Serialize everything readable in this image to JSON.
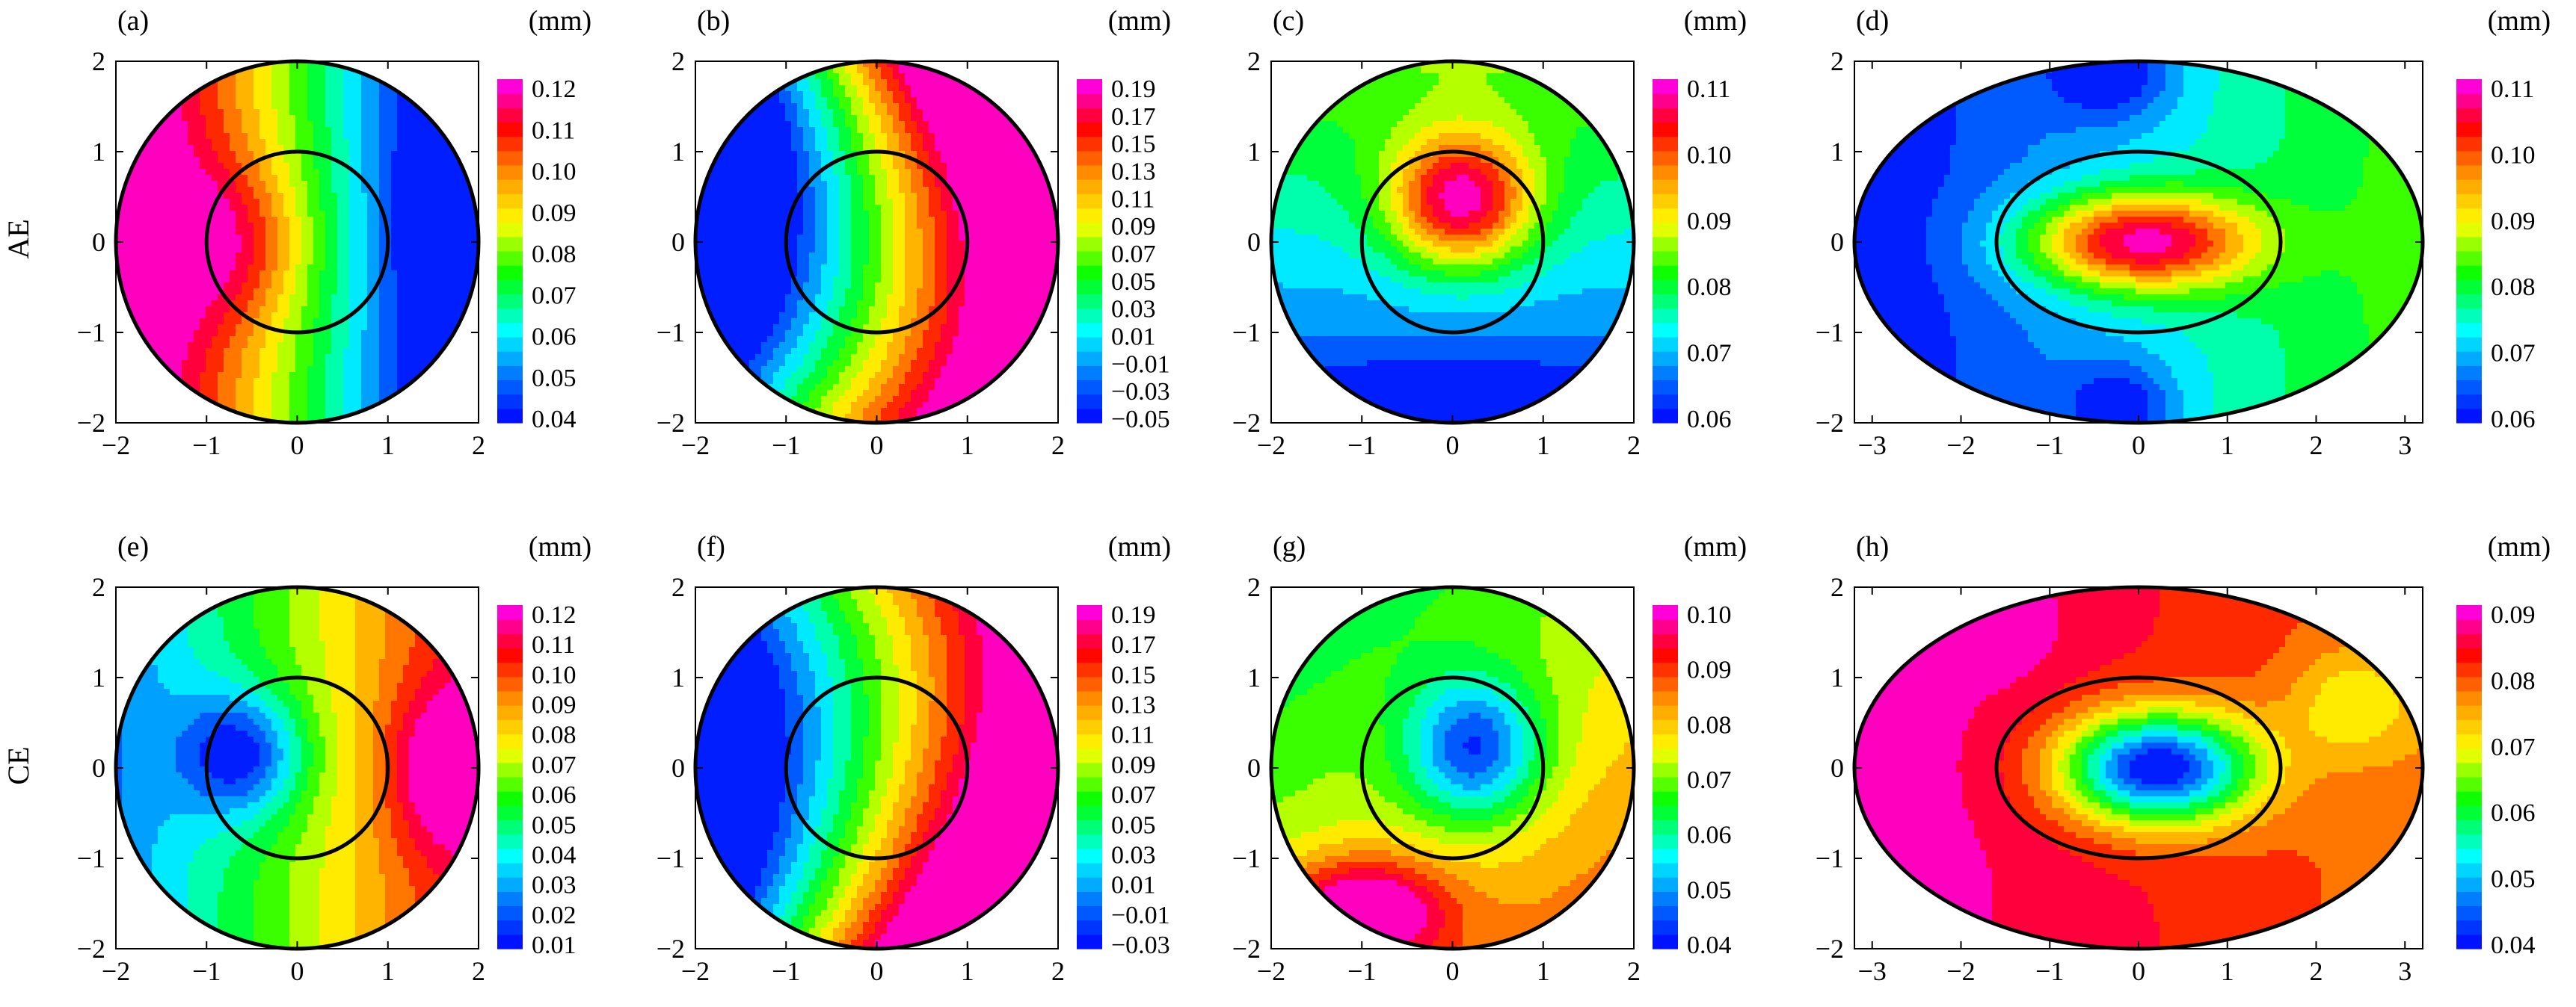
{
  "figure": {
    "row_labels": [
      "AE",
      "CE"
    ],
    "unit_label": "(mm)"
  },
  "chart_data": [
    {
      "type": "heatmap",
      "panel": "(a)",
      "row": "AE",
      "shape": "circle",
      "xlim": [
        -2,
        2
      ],
      "ylim": [
        -2,
        2
      ],
      "xticks": [
        -2,
        -1,
        0,
        1,
        2
      ],
      "yticks": [
        -2,
        -1,
        0,
        1,
        2
      ],
      "inner_boundary": {
        "shape": "circle",
        "radius": 1
      },
      "colorbar": {
        "unit": "(mm)",
        "min": 0.04,
        "max": 0.125,
        "ticks": [
          "0.04",
          "0.05",
          "0.06",
          "0.07",
          "0.08",
          "0.09",
          "0.10",
          "0.11",
          "0.12"
        ]
      },
      "field": {
        "bias": 0.08,
        "gx": -0.03,
        "gy": 0.0,
        "bx": -0.75,
        "by": 0.0,
        "bsx": 0.9,
        "bsy": 0.9,
        "bamp": 0.02,
        "cx": 1.7,
        "cy": 0.3,
        "csx": 0.5,
        "csy": 0.7,
        "camp": -0.025
      }
    },
    {
      "type": "heatmap",
      "panel": "(b)",
      "row": "AE",
      "shape": "circle",
      "xlim": [
        -2,
        2
      ],
      "ylim": [
        -2,
        2
      ],
      "xticks": [
        -2,
        -1,
        0,
        1,
        2
      ],
      "yticks": [
        -2,
        -1,
        0,
        1,
        2
      ],
      "inner_boundary": {
        "shape": "circle",
        "radius": 1
      },
      "colorbar": {
        "unit": "(mm)",
        "min": -0.05,
        "max": 0.2,
        "ticks": [
          "0.19",
          "0.17",
          "0.15",
          "0.13",
          "0.11",
          "0.09",
          "0.07",
          "0.05",
          "0.03",
          "0.01",
          "−0.01",
          "−0.03",
          "−0.05"
        ]
      },
      "field": {
        "bias": 0.07,
        "gx": 0.12,
        "gy": 0.0,
        "bx": 0,
        "by": 0,
        "bsx": 1,
        "bsy": 1,
        "bamp": 0,
        "cx": 0,
        "cy": 0,
        "csx": 1,
        "csy": 1,
        "camp": 0,
        "curve": 0.1
      }
    },
    {
      "type": "heatmap",
      "panel": "(c)",
      "row": "AE",
      "shape": "circle",
      "xlim": [
        -2,
        2
      ],
      "ylim": [
        -2,
        2
      ],
      "xticks": [
        -2,
        -1,
        0,
        1,
        2
      ],
      "yticks": [
        -2,
        -1,
        0,
        1,
        2
      ],
      "inner_boundary": {
        "shape": "circle",
        "radius": 1
      },
      "colorbar": {
        "unit": "(mm)",
        "min": 0.06,
        "max": 0.112,
        "ticks": [
          "0.06",
          "0.07",
          "0.08",
          "0.09",
          "0.10",
          "0.11"
        ]
      },
      "field": {
        "bias": 0.074,
        "gx": 0.0,
        "gy": 0.006,
        "bx": 0.1,
        "by": 0.45,
        "bsx": 0.8,
        "bsy": 0.75,
        "bamp": 0.034,
        "cx": 0,
        "cy": -1.9,
        "csx": 1.5,
        "csy": 0.5,
        "camp": -0.012
      }
    },
    {
      "type": "heatmap",
      "panel": "(d)",
      "row": "AE",
      "shape": "ellipse",
      "xlim": [
        -3.2,
        3.2
      ],
      "ylim": [
        -2,
        2
      ],
      "xticks": [
        -3,
        -2,
        -1,
        0,
        1,
        2,
        3
      ],
      "yticks": [
        -2,
        -1,
        0,
        1,
        2
      ],
      "inner_boundary": {
        "shape": "ellipse",
        "rx": 1.6,
        "ry": 1
      },
      "colorbar": {
        "unit": "(mm)",
        "min": 0.06,
        "max": 0.112,
        "ticks": [
          "0.06",
          "0.07",
          "0.08",
          "0.09",
          "0.10",
          "0.11"
        ]
      },
      "field": {
        "bias": 0.072,
        "gx": 0.004,
        "gy": 0.0,
        "bx": 0,
        "by": 0,
        "bsx": 1.3,
        "bsy": 0.55,
        "bamp": 0.038,
        "cx": -0.3,
        "cy": 1.85,
        "csx": 0.7,
        "csy": 0.5,
        "camp": -0.012,
        "dx": -0.2,
        "dy": -1.85,
        "dsx": 0.6,
        "dsy": 0.5,
        "damp": -0.012
      }
    },
    {
      "type": "heatmap",
      "panel": "(e)",
      "row": "CE",
      "shape": "circle",
      "xlim": [
        -2,
        2
      ],
      "ylim": [
        -2,
        2
      ],
      "xticks": [
        -2,
        -1,
        0,
        1,
        2
      ],
      "yticks": [
        -2,
        -1,
        0,
        1,
        2
      ],
      "inner_boundary": {
        "shape": "circle",
        "radius": 1
      },
      "colorbar": {
        "unit": "(mm)",
        "min": 0.01,
        "max": 0.125,
        "ticks": [
          "0.01",
          "0.02",
          "0.03",
          "0.04",
          "0.05",
          "0.06",
          "0.07",
          "0.08",
          "0.09",
          "0.10",
          "0.11",
          "0.12"
        ]
      },
      "field": {
        "bias": 0.07,
        "gx": 0.022,
        "gy": 0.0,
        "bx": -0.6,
        "by": 0.15,
        "bsx": 0.7,
        "bsy": 0.7,
        "bamp": -0.045,
        "cx": 1.6,
        "cy": 0.0,
        "csx": 0.6,
        "csy": 0.9,
        "camp": 0.03
      }
    },
    {
      "type": "heatmap",
      "panel": "(f)",
      "row": "CE",
      "shape": "circle",
      "xlim": [
        -2,
        2
      ],
      "ylim": [
        -2,
        2
      ],
      "xticks": [
        -2,
        -1,
        0,
        1,
        2
      ],
      "yticks": [
        -2,
        -1,
        0,
        1,
        2
      ],
      "inner_boundary": {
        "shape": "circle",
        "radius": 1
      },
      "colorbar": {
        "unit": "(mm)",
        "min": -0.03,
        "max": 0.2,
        "ticks": [
          "0.19",
          "0.17",
          "0.15",
          "0.13",
          "0.11",
          "0.09",
          "0.07",
          "0.05",
          "0.03",
          "0.01",
          "−0.01",
          "−0.03"
        ]
      },
      "field": {
        "bias": 0.085,
        "gx": 0.1,
        "gy": -0.02,
        "bx": 0,
        "by": 0,
        "bsx": 1,
        "bsy": 1,
        "bamp": 0,
        "cx": 0,
        "cy": 0,
        "csx": 1,
        "csy": 1,
        "camp": 0,
        "curve": -0.08
      }
    },
    {
      "type": "heatmap",
      "panel": "(g)",
      "row": "CE",
      "shape": "circle",
      "xlim": [
        -2,
        2
      ],
      "ylim": [
        -2,
        2
      ],
      "xticks": [
        -2,
        -1,
        0,
        1,
        2
      ],
      "yticks": [
        -2,
        -1,
        0,
        1,
        2
      ],
      "inner_boundary": {
        "shape": "circle",
        "radius": 1
      },
      "colorbar": {
        "unit": "(mm)",
        "min": 0.04,
        "max": 0.1,
        "ticks": [
          "0.04",
          "0.05",
          "0.06",
          "0.07",
          "0.08",
          "0.09",
          "0.10"
        ]
      },
      "field": {
        "bias": 0.074,
        "gx": 0.003,
        "gy": -0.004,
        "bx": 0.25,
        "by": 0.2,
        "bsx": 0.75,
        "bsy": 0.8,
        "bamp": -0.03,
        "cx": -1.0,
        "cy": -1.6,
        "csx": 0.9,
        "csy": 0.6,
        "camp": 0.03
      }
    },
    {
      "type": "heatmap",
      "panel": "(h)",
      "row": "CE",
      "shape": "ellipse",
      "xlim": [
        -3.2,
        3.2
      ],
      "ylim": [
        -2,
        2
      ],
      "xticks": [
        -3,
        -2,
        -1,
        0,
        1,
        2,
        3
      ],
      "yticks": [
        -2,
        -1,
        0,
        1,
        2
      ],
      "inner_boundary": {
        "shape": "ellipse",
        "rx": 1.6,
        "ry": 1
      },
      "colorbar": {
        "unit": "(mm)",
        "min": 0.04,
        "max": 0.092,
        "ticks": [
          "0.04",
          "0.05",
          "0.06",
          "0.07",
          "0.08",
          "0.09"
        ]
      },
      "field": {
        "bias": 0.085,
        "gx": -0.002,
        "gy": 0.0,
        "bx": 0.2,
        "by": 0,
        "bsx": 1.1,
        "bsy": 0.62,
        "bamp": -0.045,
        "cx": 2.4,
        "cy": 0.7,
        "csx": 0.7,
        "csy": 0.6,
        "camp": -0.01,
        "dx": -1.6,
        "dy": 1.6,
        "dsx": 0.6,
        "dsy": 0.5,
        "damp": 0.006
      }
    }
  ]
}
